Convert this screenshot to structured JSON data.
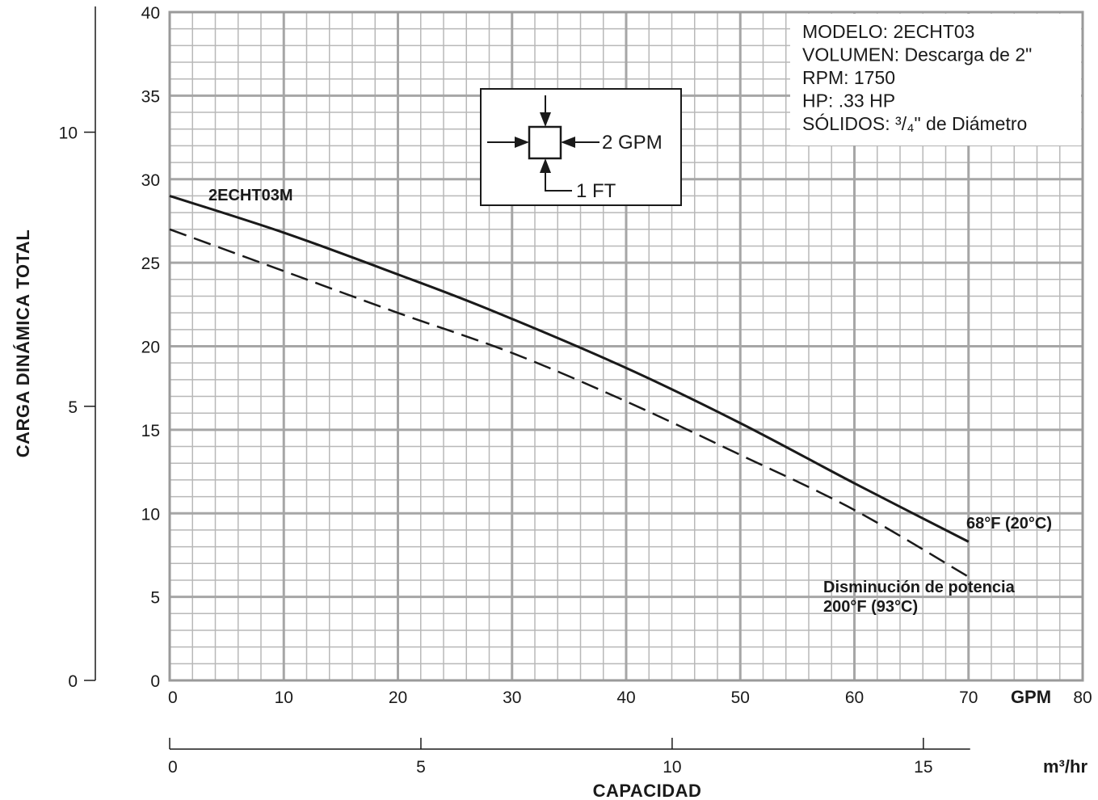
{
  "chart_data": {
    "type": "line",
    "x_axis": {
      "label": "CAPACIDAD",
      "unit": "GPM",
      "range": [
        0,
        80
      ],
      "ticks": [
        0,
        10,
        20,
        30,
        40,
        50,
        60,
        70,
        80
      ],
      "tick_labels": [
        "0",
        "10",
        "20",
        "30",
        "40",
        "50",
        "60",
        "70",
        "80"
      ],
      "secondary": {
        "unit": "m³/hr",
        "ticks": [
          0,
          5,
          10,
          15
        ],
        "tick_labels": [
          "0",
          "5",
          "10",
          "15"
        ]
      }
    },
    "y_axis": {
      "label": "CARGA DINÁMICA TOTAL",
      "range": [
        0,
        40
      ],
      "ticks": [
        0,
        5,
        10,
        15,
        20,
        25,
        30,
        35,
        40
      ],
      "tick_labels": [
        "0",
        "5",
        "10",
        "15",
        "20",
        "25",
        "30",
        "35",
        "40"
      ],
      "secondary": {
        "range": [
          0,
          12.19
        ],
        "ticks": [
          0,
          5,
          10
        ],
        "tick_labels": [
          "0",
          "5",
          "10"
        ]
      }
    },
    "grid": true,
    "series": [
      {
        "name": "68°F (20°C)",
        "style": "solid",
        "x": [
          0,
          10,
          20,
          28,
          40,
          50,
          60,
          70
        ],
        "y": [
          29,
          26.8,
          24.3,
          22.2,
          18.7,
          15.4,
          11.8,
          8.3
        ]
      },
      {
        "name": "Disminución de potencia 200°F (93°C)",
        "style": "dashed",
        "x": [
          0,
          10,
          20,
          30,
          40,
          50,
          60,
          70
        ],
        "y": [
          27,
          24.5,
          22,
          19.6,
          16.7,
          13.5,
          10.2,
          6.2
        ]
      }
    ],
    "annotations": {
      "model_curve": "2ECHT03M",
      "solid_label": "68°F (20°C)",
      "dashed_label_line1": "Disminución de potencia",
      "dashed_label_line2": "200°F (93°C)"
    },
    "specs": [
      "MODELO: 2ECHT03",
      "VOLUMEN: Descarga de 2\"",
      "RPM: 1750",
      "HP: .33 HP",
      "SÓLIDOS: ³/₄\" de Diámetro"
    ],
    "grid_legend": {
      "horizontal": "2 GPM",
      "vertical": "1 FT"
    }
  }
}
